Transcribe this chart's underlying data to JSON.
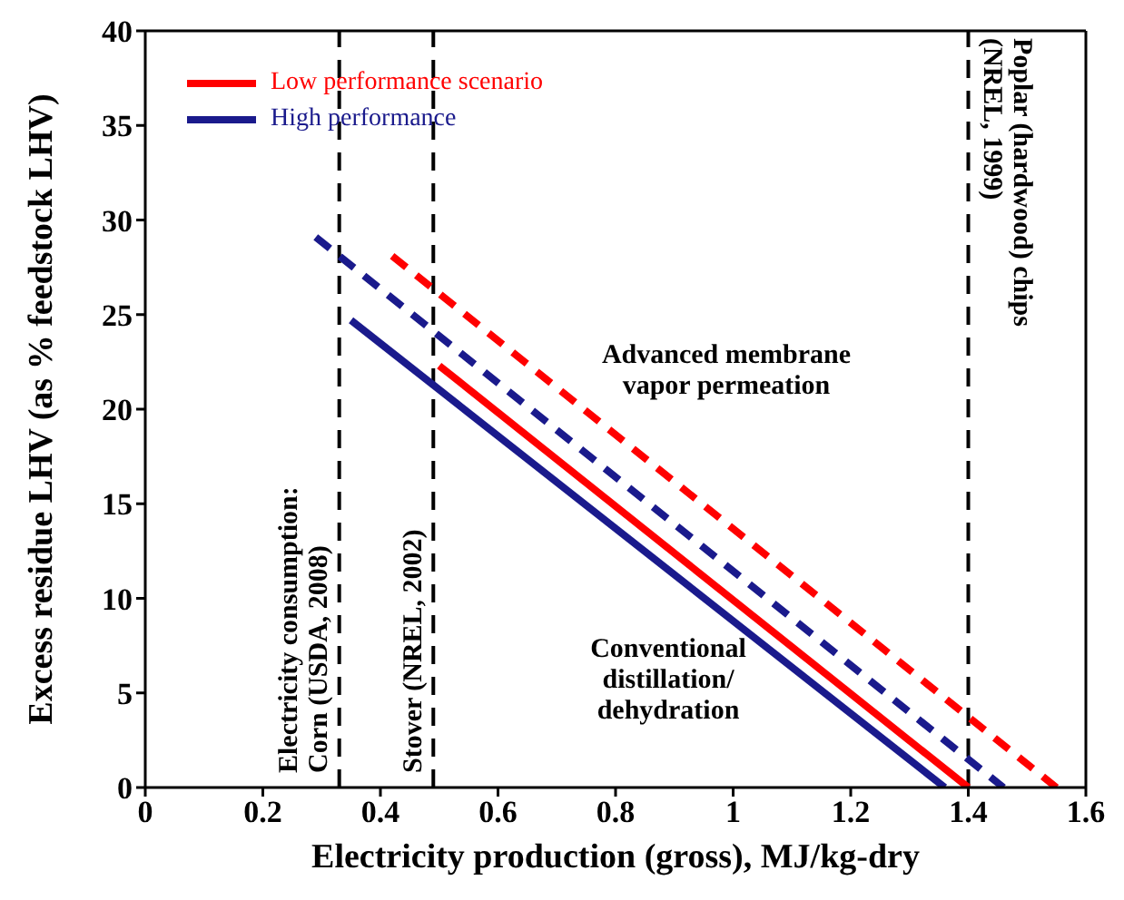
{
  "chart_data": {
    "type": "line",
    "xlabel": "Electricity production (gross), MJ/kg-dry",
    "ylabel": "Excess residue LHV (as % feedstock LHV)",
    "xlim": [
      0,
      1.6
    ],
    "xticks": [
      0,
      0.2,
      0.4,
      0.6,
      0.8,
      1,
      1.2,
      1.4,
      1.6
    ],
    "ylim": [
      0,
      40
    ],
    "yticks": [
      0,
      5,
      10,
      15,
      20,
      25,
      30,
      35,
      40
    ],
    "legend": "top left",
    "marker": "none",
    "series": [
      {
        "name": "Low performance scenario",
        "color": "#ff0000",
        "line_style": "solid",
        "x": [
          0.5,
          1.4
        ],
        "values": [
          22.3,
          0
        ]
      },
      {
        "color": "#ff0000",
        "line_style": "dashed",
        "x": [
          0.42,
          1.55
        ],
        "values": [
          28.1,
          0
        ]
      },
      {
        "name": "High performance",
        "color": "#1a1a8c",
        "line_style": "solid",
        "x": [
          0.35,
          1.36
        ],
        "values": [
          24.7,
          0
        ]
      },
      {
        "color": "#1a1a8c",
        "line_style": "dashed",
        "x": [
          0.29,
          1.46
        ],
        "values": [
          29.1,
          0
        ]
      }
    ],
    "ref_lines": [
      {
        "axis": "x",
        "value": 0.33,
        "label": "Electricity consumption:\nCorn (USDA, 2008)",
        "color": "#000000",
        "line_style": "dashed"
      },
      {
        "axis": "x",
        "value": 0.49,
        "label": "Stover (NREL, 2002)",
        "color": "#000000",
        "line_style": "dashed"
      },
      {
        "axis": "x",
        "value": 1.4,
        "label": "Poplar (hardwood) chips\n(NREL, 1999)",
        "color": "#000000",
        "line_style": "dashed"
      }
    ],
    "annotations": [
      "Advanced membrane\nvapor permeation",
      "Conventional\ndistillation/\ndehydration"
    ]
  }
}
